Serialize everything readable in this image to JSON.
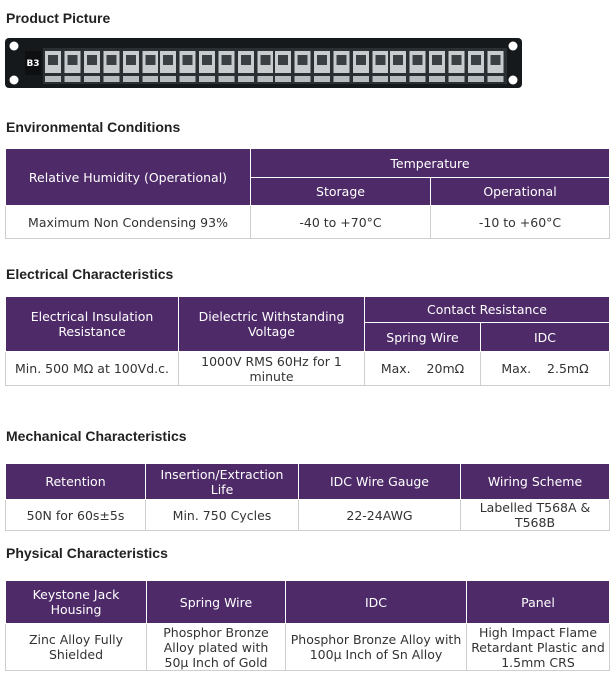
{
  "sections": {
    "product": "Product Picture",
    "env": "Environmental Conditions",
    "elec": "Electrical Characteristics",
    "mech": "Mechanical Characteristics",
    "phys": "Physical Characteristics"
  },
  "panel_logo": "B3",
  "env": {
    "h_humidity": "Relative Humidity (Operational)",
    "h_temperature": "Temperature",
    "h_storage": "Storage",
    "h_operational": "Operational",
    "v_humidity": "Maximum Non Condensing 93%",
    "v_storage": "-40 to +70°C",
    "v_operational": "-10 to +60°C"
  },
  "elec": {
    "h_insulation": "Electrical Insulation Resistance",
    "h_dielectric": "Dielectric Withstanding Voltage",
    "h_contact": "Contact Resistance",
    "h_spring": "Spring Wire",
    "h_idc": "IDC",
    "v_insulation": "Min. 500 MΩ at 100Vd.c.",
    "v_dielectric": "1000V RMS 60Hz for 1 minute",
    "v_spring": "Max.    20mΩ",
    "v_idc": "Max.    2.5mΩ"
  },
  "mech": {
    "h_retention": "Retention",
    "h_life": "Insertion/Extraction Life",
    "h_gauge": "IDC Wire Gauge",
    "h_scheme": "Wiring Scheme",
    "v_retention": "50N for 60s±5s",
    "v_life": "Min. 750 Cycles",
    "v_gauge": "22-24AWG",
    "v_scheme": "Labelled T568A & T568B"
  },
  "phys": {
    "h_housing": "Keystone Jack Housing",
    "h_spring": "Spring Wire",
    "h_idc": "IDC",
    "h_panel": "Panel",
    "v_housing": "Zinc Alloy Fully Shielded",
    "v_spring": "Phosphor Bronze Alloy plated with 50µ Inch of Gold",
    "v_idc": "Phosphor Bronze Alloy with 100µ Inch of Sn Alloy",
    "v_panel": "High Impact Flame Retardant Plastic and 1.5mm CRS"
  }
}
